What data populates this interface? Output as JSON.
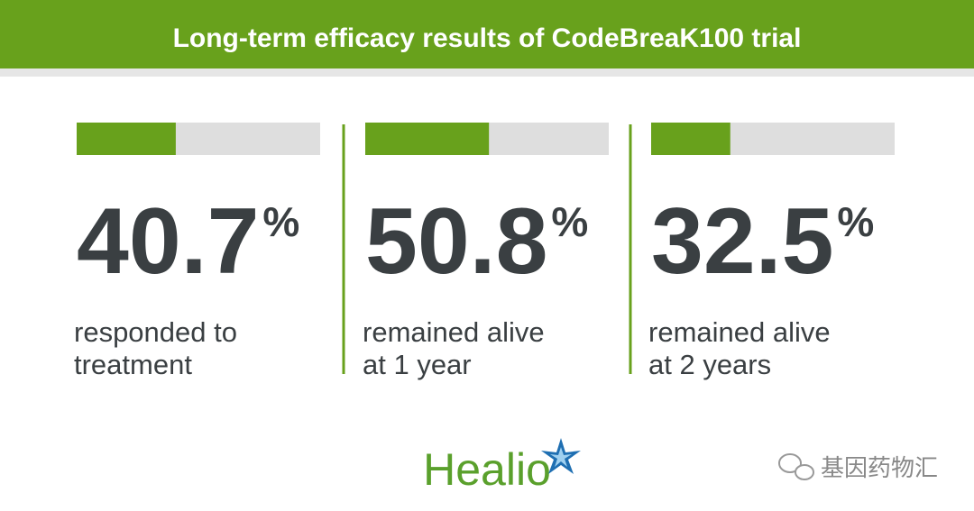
{
  "header": {
    "title": "Long-term efficacy results of CodeBreaK100 trial"
  },
  "stats": [
    {
      "value": 40.7,
      "unit": "%",
      "lines": [
        "responded to",
        "treatment"
      ]
    },
    {
      "value": 50.8,
      "unit": "%",
      "lines": [
        "remained alive",
        "at 1 year"
      ]
    },
    {
      "value": 32.5,
      "unit": "%",
      "lines": [
        "remained alive",
        "at 2 years"
      ]
    }
  ],
  "bar_max": 100,
  "bar_color": "#68a11c",
  "track_color": "#dedede",
  "logo": "Healio",
  "watermark": "基因药物汇"
}
